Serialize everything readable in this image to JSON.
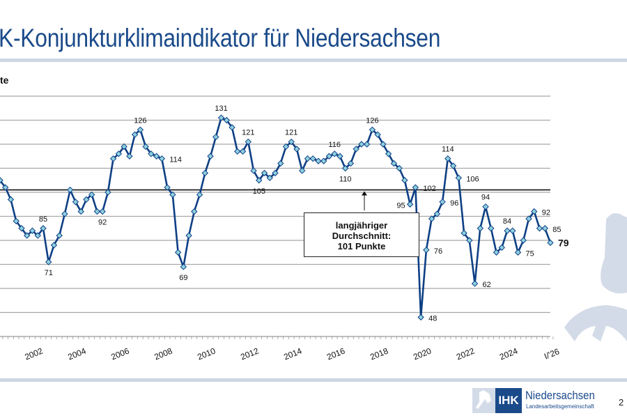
{
  "header": {
    "title": "K-Konjunkturklimaindikator für Niedersachsen",
    "unit_label": "te"
  },
  "footer": {
    "page_number": "2",
    "logo": {
      "ihk": "IHK",
      "name": "Niedersachsen",
      "subtitle": "Landesarbeitsgemeinschaft"
    }
  },
  "colors": {
    "brand": "#1a4a8a",
    "line": "#0d3f84",
    "marker_fill": "#8fd0e0",
    "grid": "#a8a8a8",
    "band": "#cdd6e4",
    "watermark": "#d3dbe8"
  },
  "icons": {
    "watermark": "horse-icon",
    "logo": "horse-icon"
  },
  "chart_data": {
    "type": "line",
    "title": "",
    "xlabel": "",
    "ylabel": "te",
    "ylim": [
      40,
      140
    ],
    "grid": true,
    "y_gridlines": [
      40,
      50,
      60,
      70,
      80,
      90,
      100,
      110,
      120,
      130,
      140
    ],
    "x_tick_labels": [
      "2002",
      "2004",
      "2006",
      "2008",
      "2010",
      "2012",
      "2014",
      "2016",
      "2018",
      "2020",
      "2022",
      "2024",
      "I/'26"
    ],
    "x_tick_quarters": [
      "2002-Q1",
      "2004-Q1",
      "2006-Q1",
      "2008-Q1",
      "2010-Q1",
      "2012-Q1",
      "2014-Q1",
      "2016-Q1",
      "2018-Q1",
      "2020-Q1",
      "2022-Q1",
      "2024-Q1",
      "2026-Q1"
    ],
    "x": [
      "2000-Q3",
      "2000-Q4",
      "2001-Q1",
      "2001-Q2",
      "2001-Q3",
      "2001-Q4",
      "2002-Q1",
      "2002-Q2",
      "2002-Q3",
      "2002-Q4",
      "2003-Q1",
      "2003-Q2",
      "2003-Q3",
      "2003-Q4",
      "2004-Q1",
      "2004-Q2",
      "2004-Q3",
      "2004-Q4",
      "2005-Q1",
      "2005-Q2",
      "2005-Q3",
      "2005-Q4",
      "2006-Q1",
      "2006-Q2",
      "2006-Q3",
      "2006-Q4",
      "2007-Q1",
      "2007-Q2",
      "2007-Q3",
      "2007-Q4",
      "2008-Q1",
      "2008-Q2",
      "2008-Q3",
      "2008-Q4",
      "2009-Q1",
      "2009-Q2",
      "2009-Q3",
      "2009-Q4",
      "2010-Q1",
      "2010-Q2",
      "2010-Q3",
      "2010-Q4",
      "2011-Q1",
      "2011-Q2",
      "2011-Q3",
      "2011-Q4",
      "2012-Q1",
      "2012-Q2",
      "2012-Q3",
      "2012-Q4",
      "2013-Q1",
      "2013-Q2",
      "2013-Q3",
      "2013-Q4",
      "2014-Q1",
      "2014-Q2",
      "2014-Q3",
      "2014-Q4",
      "2015-Q1",
      "2015-Q2",
      "2015-Q3",
      "2015-Q4",
      "2016-Q1",
      "2016-Q2",
      "2016-Q3",
      "2016-Q4",
      "2017-Q1",
      "2017-Q2",
      "2017-Q3",
      "2017-Q4",
      "2018-Q1",
      "2018-Q2",
      "2018-Q3",
      "2018-Q4",
      "2019-Q1",
      "2019-Q2",
      "2019-Q3",
      "2019-Q4",
      "2020-Q1",
      "2020-Q2",
      "2020-Q3",
      "2020-Q4",
      "2021-Q1",
      "2021-Q2",
      "2021-Q3",
      "2021-Q4",
      "2022-Q1",
      "2022-Q2",
      "2022-Q3",
      "2022-Q4",
      "2023-Q1",
      "2023-Q2",
      "2023-Q3",
      "2023-Q4",
      "2024-Q1",
      "2024-Q2",
      "2024-Q3",
      "2024-Q4",
      "2025-Q1",
      "2025-Q2",
      "2025-Q3",
      "2025-Q4",
      "2026-Q1"
    ],
    "values": [
      105,
      102,
      97,
      88,
      85,
      82,
      84,
      82,
      85,
      71,
      78,
      82,
      91,
      101,
      96,
      92,
      97,
      99,
      92,
      92,
      100,
      114,
      116,
      119,
      115,
      124,
      126,
      119,
      116,
      115,
      114,
      102,
      99,
      75,
      69,
      82,
      92,
      99,
      108,
      115,
      123,
      131,
      130,
      127,
      117,
      117,
      121,
      109,
      105,
      108,
      106,
      108,
      112,
      119,
      121,
      118,
      109,
      114,
      114,
      113,
      113,
      115,
      116,
      115,
      110,
      112,
      118,
      120,
      120,
      126,
      124,
      120,
      116,
      112,
      110,
      105,
      95,
      102,
      48,
      76,
      89,
      91,
      96,
      114,
      111,
      106,
      83,
      80,
      62,
      85,
      94,
      85,
      75,
      77,
      84,
      84,
      75,
      80,
      89,
      92,
      85,
      85,
      79
    ],
    "data_labels": [
      {
        "index": 8,
        "text": "85",
        "pos": "above"
      },
      {
        "index": 9,
        "text": "71",
        "pos": "below"
      },
      {
        "index": 19,
        "text": "92",
        "pos": "below"
      },
      {
        "index": 26,
        "text": "126",
        "pos": "above"
      },
      {
        "index": 30,
        "text": "114",
        "pos": "right"
      },
      {
        "index": 34,
        "text": "69",
        "pos": "below"
      },
      {
        "index": 41,
        "text": "131",
        "pos": "above"
      },
      {
        "index": 46,
        "text": "121",
        "pos": "above"
      },
      {
        "index": 48,
        "text": "105",
        "pos": "below"
      },
      {
        "index": 54,
        "text": "121",
        "pos": "above"
      },
      {
        "index": 62,
        "text": "116",
        "pos": "above"
      },
      {
        "index": 64,
        "text": "110",
        "pos": "below"
      },
      {
        "index": 69,
        "text": "126",
        "pos": "above"
      },
      {
        "index": 76,
        "text": "95",
        "pos": "left"
      },
      {
        "index": 77,
        "text": "102",
        "pos": "right"
      },
      {
        "index": 78,
        "text": "48",
        "pos": "right"
      },
      {
        "index": 79,
        "text": "76",
        "pos": "right"
      },
      {
        "index": 82,
        "text": "96",
        "pos": "right"
      },
      {
        "index": 83,
        "text": "114",
        "pos": "above"
      },
      {
        "index": 85,
        "text": "106",
        "pos": "right"
      },
      {
        "index": 88,
        "text": "62",
        "pos": "right"
      },
      {
        "index": 90,
        "text": "94",
        "pos": "above"
      },
      {
        "index": 94,
        "text": "84",
        "pos": "above"
      },
      {
        "index": 96,
        "text": "75",
        "pos": "right"
      },
      {
        "index": 99,
        "text": "92",
        "pos": "right"
      },
      {
        "index": 101,
        "text": "85",
        "pos": "right"
      },
      {
        "index": 102,
        "text": "79",
        "pos": "right",
        "emphasis": true
      }
    ],
    "reference_line": {
      "value": 101,
      "label_lines": [
        "langjähriger",
        "Durchschnitt:",
        "101 Punkte"
      ]
    }
  }
}
